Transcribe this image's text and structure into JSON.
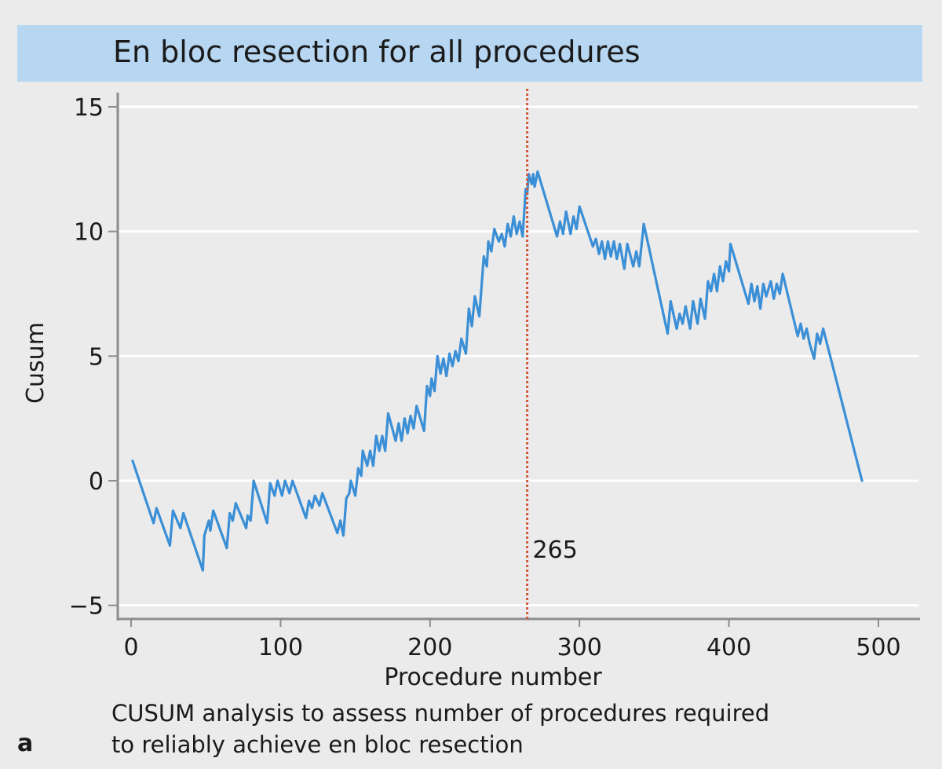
{
  "chart_data": {
    "type": "line",
    "title": "En bloc resection for all procedures",
    "xlabel": "Procedure number",
    "ylabel": "Cusum",
    "xlim": [
      0,
      520
    ],
    "ylim": [
      -5,
      15
    ],
    "x_ticks": [
      "0",
      "100",
      "200",
      "300",
      "400",
      "500"
    ],
    "y_ticks": [
      "−5",
      "0",
      "5",
      "10",
      "15"
    ],
    "grid": "horizontal",
    "series": [
      {
        "color": "#3b8fd6",
        "points": [
          [
            1,
            0.8
          ],
          [
            15,
            -1.7
          ],
          [
            17,
            -1.1
          ],
          [
            26,
            -2.6
          ],
          [
            28,
            -1.2
          ],
          [
            33,
            -1.9
          ],
          [
            35,
            -1.3
          ],
          [
            48,
            -3.6
          ],
          [
            49,
            -2.2
          ],
          [
            52,
            -1.6
          ],
          [
            53,
            -2.0
          ],
          [
            55,
            -1.2
          ],
          [
            64,
            -2.7
          ],
          [
            66,
            -1.3
          ],
          [
            68,
            -1.6
          ],
          [
            70,
            -0.9
          ],
          [
            77,
            -1.9
          ],
          [
            78,
            -1.4
          ],
          [
            80,
            -1.6
          ],
          [
            82,
            0.0
          ],
          [
            91,
            -1.7
          ],
          [
            93,
            -0.1
          ],
          [
            96,
            -0.6
          ],
          [
            98,
            0.0
          ],
          [
            101,
            -0.6
          ],
          [
            103,
            0.0
          ],
          [
            106,
            -0.5
          ],
          [
            108,
            0.0
          ],
          [
            117,
            -1.5
          ],
          [
            119,
            -0.8
          ],
          [
            121,
            -1.1
          ],
          [
            123,
            -0.6
          ],
          [
            126,
            -1.0
          ],
          [
            128,
            -0.5
          ],
          [
            138,
            -2.1
          ],
          [
            140,
            -1.6
          ],
          [
            142,
            -2.2
          ],
          [
            144,
            -0.7
          ],
          [
            146,
            -0.5
          ],
          [
            147,
            0.0
          ],
          [
            150,
            -0.6
          ],
          [
            152,
            0.5
          ],
          [
            154,
            0.2
          ],
          [
            155,
            1.2
          ],
          [
            158,
            0.6
          ],
          [
            160,
            1.2
          ],
          [
            162,
            0.6
          ],
          [
            164,
            1.8
          ],
          [
            166,
            1.2
          ],
          [
            168,
            1.8
          ],
          [
            170,
            1.2
          ],
          [
            172,
            2.7
          ],
          [
            177,
            1.6
          ],
          [
            179,
            2.3
          ],
          [
            181,
            1.6
          ],
          [
            183,
            2.5
          ],
          [
            185,
            1.9
          ],
          [
            187,
            2.6
          ],
          [
            189,
            2.1
          ],
          [
            191,
            3.0
          ],
          [
            196,
            2.0
          ],
          [
            198,
            3.8
          ],
          [
            200,
            3.4
          ],
          [
            201,
            4.1
          ],
          [
            203,
            3.6
          ],
          [
            205,
            5.0
          ],
          [
            207,
            4.3
          ],
          [
            209,
            4.9
          ],
          [
            211,
            4.2
          ],
          [
            213,
            5.1
          ],
          [
            215,
            4.6
          ],
          [
            217,
            5.2
          ],
          [
            219,
            4.8
          ],
          [
            221,
            5.7
          ],
          [
            224,
            5.1
          ],
          [
            226,
            6.9
          ],
          [
            228,
            6.2
          ],
          [
            230,
            7.4
          ],
          [
            233,
            6.6
          ],
          [
            236,
            9.0
          ],
          [
            238,
            8.6
          ],
          [
            239,
            9.6
          ],
          [
            241,
            9.2
          ],
          [
            243,
            10.1
          ],
          [
            246,
            9.6
          ],
          [
            248,
            9.9
          ],
          [
            250,
            9.4
          ],
          [
            252,
            10.3
          ],
          [
            254,
            9.8
          ],
          [
            256,
            10.6
          ],
          [
            258,
            9.9
          ],
          [
            260,
            10.4
          ],
          [
            262,
            9.8
          ],
          [
            264,
            11.7
          ],
          [
            265,
            11.5
          ],
          [
            266,
            12.3
          ],
          [
            268,
            11.9
          ],
          [
            269,
            12.3
          ],
          [
            270,
            11.8
          ],
          [
            272,
            12.4
          ],
          [
            285,
            9.8
          ],
          [
            287,
            10.4
          ],
          [
            289,
            9.9
          ],
          [
            291,
            10.8
          ],
          [
            294,
            9.9
          ],
          [
            296,
            10.6
          ],
          [
            298,
            10.1
          ],
          [
            300,
            11.0
          ],
          [
            309,
            9.4
          ],
          [
            311,
            9.7
          ],
          [
            313,
            9.1
          ],
          [
            315,
            9.6
          ],
          [
            317,
            8.9
          ],
          [
            319,
            9.6
          ],
          [
            321,
            9.0
          ],
          [
            323,
            9.6
          ],
          [
            325,
            8.9
          ],
          [
            327,
            9.5
          ],
          [
            330,
            8.5
          ],
          [
            332,
            9.5
          ],
          [
            336,
            8.6
          ],
          [
            338,
            9.2
          ],
          [
            340,
            8.6
          ],
          [
            343,
            10.3
          ],
          [
            359,
            5.9
          ],
          [
            361,
            7.2
          ],
          [
            365,
            6.1
          ],
          [
            367,
            6.7
          ],
          [
            369,
            6.3
          ],
          [
            371,
            7.0
          ],
          [
            374,
            6.1
          ],
          [
            376,
            7.2
          ],
          [
            379,
            6.3
          ],
          [
            381,
            7.3
          ],
          [
            384,
            6.5
          ],
          [
            386,
            8.0
          ],
          [
            388,
            7.6
          ],
          [
            390,
            8.3
          ],
          [
            392,
            7.6
          ],
          [
            394,
            8.6
          ],
          [
            396,
            8.0
          ],
          [
            398,
            8.8
          ],
          [
            400,
            8.4
          ],
          [
            401,
            9.5
          ],
          [
            413,
            7.1
          ],
          [
            415,
            7.9
          ],
          [
            417,
            7.2
          ],
          [
            419,
            7.8
          ],
          [
            421,
            6.9
          ],
          [
            423,
            7.9
          ],
          [
            425,
            7.4
          ],
          [
            428,
            8.0
          ],
          [
            430,
            7.3
          ],
          [
            432,
            7.9
          ],
          [
            434,
            7.5
          ],
          [
            436,
            8.3
          ],
          [
            446,
            5.8
          ],
          [
            448,
            6.3
          ],
          [
            450,
            5.7
          ],
          [
            452,
            6.1
          ],
          [
            454,
            5.5
          ],
          [
            457,
            4.9
          ],
          [
            459,
            5.9
          ],
          [
            461,
            5.5
          ],
          [
            463,
            6.1
          ],
          [
            489,
            0.0
          ]
        ]
      }
    ],
    "annotations": [
      {
        "type": "vline",
        "x": 265,
        "label": "265",
        "color": "#d25a3a"
      }
    ]
  },
  "caption": {
    "line1": "CUSUM analysis to assess number of procedures required",
    "line2": "to reliably achieve en bloc resection"
  },
  "panel_label": "a"
}
